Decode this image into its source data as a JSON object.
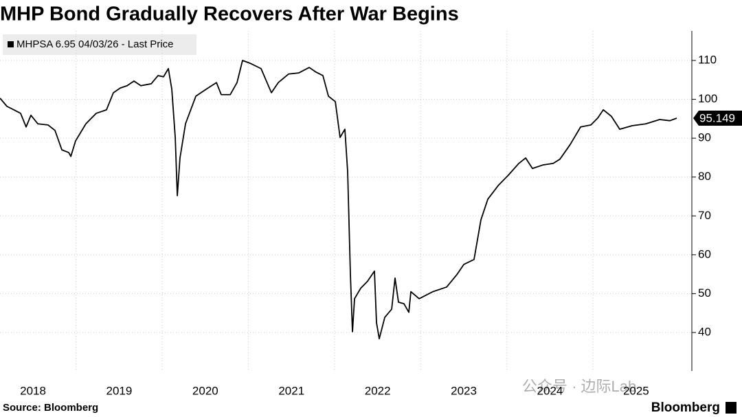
{
  "chart_data": {
    "type": "line",
    "title": "MHP Bond Gradually Recovers After War Begins",
    "source": "Source: Bloomberg",
    "brand": "Bloomberg",
    "watermark": "公众号 · 边际Lab",
    "x": [
      2018.117,
      2018.197,
      2018.277,
      2018.356,
      2018.42,
      2018.476,
      2018.556,
      2018.675,
      2018.755,
      2018.835,
      2018.915,
      2018.939,
      2018.994,
      2019.114,
      2019.234,
      2019.353,
      2019.433,
      2019.513,
      2019.592,
      2019.672,
      2019.752,
      2019.872,
      2019.951,
      2020.015,
      2020.071,
      2020.111,
      2020.151,
      2020.175,
      2020.206,
      2020.27,
      2020.39,
      2020.51,
      2020.629,
      2020.685,
      2020.789,
      2020.868,
      2020.932,
      2021.028,
      2021.147,
      2021.267,
      2021.347,
      2021.466,
      2021.586,
      2021.706,
      2021.785,
      2021.865,
      2021.929,
      2022.009,
      2022.064,
      2022.12,
      2022.152,
      2022.184,
      2022.208,
      2022.232,
      2022.304,
      2022.383,
      2022.463,
      2022.487,
      2022.519,
      2022.583,
      2022.663,
      2022.702,
      2022.742,
      2022.806,
      2022.862,
      2022.886,
      2022.982,
      2023.141,
      2023.301,
      2023.42,
      2023.5,
      2023.619,
      2023.699,
      2023.779,
      2023.899,
      2024.018,
      2024.138,
      2024.218,
      2024.297,
      2024.417,
      2024.537,
      2024.616,
      2024.736,
      2024.856,
      2024.975,
      2025.055,
      2025.119,
      2025.214,
      2025.31,
      2025.453,
      2025.613,
      2025.773,
      2025.892,
      2025.972
    ],
    "series": [
      {
        "name": "MHPSA 6.95 04/03/26 - Last Price",
        "color": "#000000",
        "values": [
          100.3,
          98.2,
          97.3,
          96.4,
          92.9,
          95.9,
          93.7,
          93.4,
          92.0,
          87.0,
          86.3,
          85.3,
          89.3,
          93.7,
          96.4,
          97.3,
          101.7,
          102.9,
          103.5,
          104.7,
          103.5,
          104.0,
          106.1,
          105.8,
          107.9,
          102.6,
          90.2,
          75.2,
          84.9,
          93.7,
          100.8,
          102.6,
          104.3,
          101.2,
          101.2,
          104.3,
          110.0,
          109.2,
          107.9,
          101.7,
          104.3,
          106.5,
          106.8,
          108.2,
          107.0,
          106.1,
          100.8,
          99.4,
          90.2,
          92.3,
          81.4,
          54.9,
          40.2,
          48.7,
          51.4,
          53.2,
          55.8,
          42.5,
          38.4,
          43.9,
          46.0,
          54.0,
          47.8,
          47.4,
          45.2,
          50.5,
          48.7,
          50.5,
          51.7,
          54.9,
          57.5,
          58.8,
          69.0,
          74.3,
          77.8,
          80.5,
          83.5,
          84.9,
          82.2,
          83.1,
          83.5,
          84.6,
          88.4,
          92.9,
          93.4,
          95.2,
          97.3,
          95.6,
          92.3,
          93.2,
          93.7,
          94.8,
          94.5,
          95.149
        ]
      }
    ],
    "xlim": [
      2018.117,
      2026.147
    ],
    "xticks": [
      2018,
      2019,
      2020,
      2021,
      2022,
      2023,
      2024,
      2025
    ],
    "ylim": [
      30.1,
      117.6
    ],
    "yticks": [
      40,
      50,
      60,
      70,
      80,
      90,
      100,
      110
    ],
    "grid": true,
    "y_axis_side": "right"
  }
}
